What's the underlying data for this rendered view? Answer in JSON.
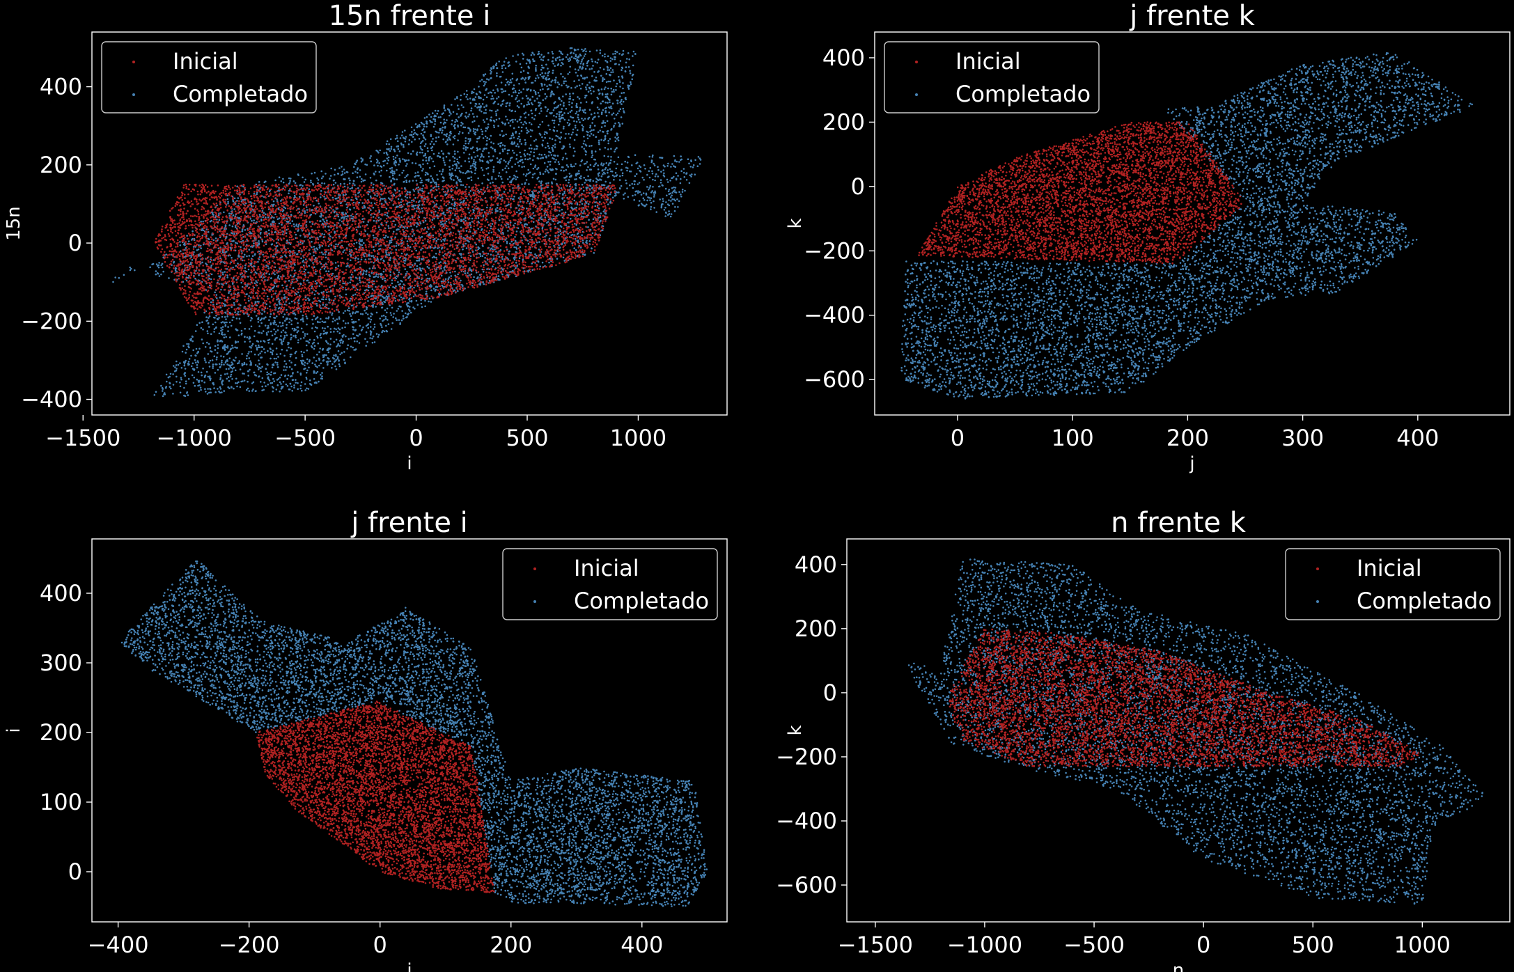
{
  "legend_labels": {
    "initial": "Inicial",
    "completed": "Completado"
  },
  "colors": {
    "initial": "#b22222",
    "completed": "#4682b4",
    "axes": "#ffffff",
    "background": "#000000"
  },
  "chart_data": [
    {
      "type": "scatter",
      "title": "15n frente i",
      "xlabel": "i",
      "ylabel": "15n",
      "xlim": [
        -1460,
        1400
      ],
      "ylim": [
        -440,
        540
      ],
      "xticks": [
        -1500,
        -1000,
        -500,
        0,
        500,
        1000
      ],
      "yticks": [
        -400,
        -200,
        0,
        200,
        400
      ],
      "legend_position": "upper-left",
      "series": [
        {
          "name": "Inicial",
          "key": "initial",
          "point_count": 6000,
          "region": [
            [
              -1180,
              0
            ],
            [
              -1050,
              150
            ],
            [
              900,
              150
            ],
            [
              900,
              120
            ],
            [
              800,
              -30
            ],
            [
              100,
              -140
            ],
            [
              -500,
              -185
            ],
            [
              -1000,
              -185
            ]
          ]
        },
        {
          "name": "Completado",
          "key": "completed",
          "point_count": 6500,
          "region": [
            [
              -1400,
              -110
            ],
            [
              -1150,
              -40
            ],
            [
              -800,
              150
            ],
            [
              -300,
              200
            ],
            [
              200,
              380
            ],
            [
              400,
              480
            ],
            [
              700,
              500
            ],
            [
              1000,
              490
            ],
            [
              900,
              230
            ],
            [
              1300,
              220
            ],
            [
              1150,
              60
            ],
            [
              900,
              120
            ],
            [
              800,
              -30
            ],
            [
              100,
              -140
            ],
            [
              -200,
              -260
            ],
            [
              -500,
              -380
            ],
            [
              -800,
              -380
            ],
            [
              -1200,
              -400
            ],
            [
              -900,
              -130
            ],
            [
              -1300,
              -60
            ]
          ]
        }
      ]
    },
    {
      "type": "scatter",
      "title": "j  frente k",
      "xlabel": "j",
      "ylabel": "k",
      "xlim": [
        -72,
        480
      ],
      "ylim": [
        -710,
        480
      ],
      "xticks": [
        0,
        100,
        200,
        300,
        400
      ],
      "yticks": [
        -600,
        -400,
        -200,
        0,
        200,
        400
      ],
      "legend_position": "upper-left",
      "series": [
        {
          "name": "Inicial",
          "key": "initial",
          "point_count": 5000,
          "region": [
            [
              -35,
              -215
            ],
            [
              0,
              0
            ],
            [
              50,
              90
            ],
            [
              150,
              200
            ],
            [
              200,
              200
            ],
            [
              250,
              -50
            ],
            [
              190,
              -240
            ],
            [
              -35,
              -215
            ]
          ]
        },
        {
          "name": "Completado",
          "key": "completed",
          "point_count": 6500,
          "region": [
            [
              -45,
              -230
            ],
            [
              -50,
              -600
            ],
            [
              0,
              -660
            ],
            [
              150,
              -640
            ],
            [
              200,
              -500
            ],
            [
              270,
              -350
            ],
            [
              330,
              -330
            ],
            [
              400,
              -170
            ],
            [
              380,
              -80
            ],
            [
              300,
              -50
            ],
            [
              330,
              80
            ],
            [
              450,
              250
            ],
            [
              380,
              420
            ],
            [
              300,
              380
            ],
            [
              220,
              250
            ],
            [
              180,
              240
            ],
            [
              250,
              -50
            ],
            [
              190,
              -240
            ],
            [
              -45,
              -230
            ]
          ]
        }
      ]
    },
    {
      "type": "scatter",
      "title": "j frente i",
      "xlabel": "j",
      "ylabel": "i",
      "xlim": [
        -440,
        530
      ],
      "ylim": [
        -72,
        478
      ],
      "xticks": [
        -400,
        -200,
        0,
        200,
        400
      ],
      "yticks": [
        0,
        100,
        200,
        300,
        400
      ],
      "legend_position": "upper-right",
      "series": [
        {
          "name": "Inicial",
          "key": "initial",
          "point_count": 5500,
          "region": [
            [
              -190,
              200
            ],
            [
              -5,
              245
            ],
            [
              140,
              180
            ],
            [
              175,
              -30
            ],
            [
              90,
              -25
            ],
            [
              0,
              0
            ],
            [
              -130,
              90
            ],
            [
              -175,
              140
            ]
          ]
        },
        {
          "name": "Completado",
          "key": "completed",
          "point_count": 6500,
          "region": [
            [
              -400,
              330
            ],
            [
              -280,
              450
            ],
            [
              -180,
              360
            ],
            [
              -50,
              330
            ],
            [
              40,
              380
            ],
            [
              140,
              320
            ],
            [
              200,
              130
            ],
            [
              300,
              150
            ],
            [
              480,
              130
            ],
            [
              500,
              0
            ],
            [
              470,
              -50
            ],
            [
              200,
              -45
            ],
            [
              175,
              -30
            ],
            [
              140,
              180
            ],
            [
              -5,
              245
            ],
            [
              -190,
              200
            ],
            [
              -350,
              290
            ]
          ]
        }
      ]
    },
    {
      "type": "scatter",
      "title": "n frente k",
      "xlabel": "n",
      "ylabel": "k",
      "xlim": [
        -1630,
        1400
      ],
      "ylim": [
        -715,
        480
      ],
      "xticks": [
        -1500,
        -1000,
        -500,
        0,
        500,
        1000
      ],
      "yticks": [
        -600,
        -400,
        -200,
        0,
        200,
        400
      ],
      "legend_position": "upper-right",
      "series": [
        {
          "name": "Inicial",
          "key": "initial",
          "point_count": 6000,
          "region": [
            [
              -1180,
              -20
            ],
            [
              -1000,
              200
            ],
            [
              -700,
              190
            ],
            [
              -200,
              130
            ],
            [
              300,
              0
            ],
            [
              700,
              -80
            ],
            [
              1000,
              -190
            ],
            [
              900,
              -230
            ],
            [
              -800,
              -230
            ],
            [
              -1100,
              -150
            ]
          ]
        },
        {
          "name": "Completado",
          "key": "completed",
          "point_count": 6500,
          "region": [
            [
              -1370,
              100
            ],
            [
              -1200,
              80
            ],
            [
              -1100,
              420
            ],
            [
              -600,
              400
            ],
            [
              -300,
              260
            ],
            [
              200,
              180
            ],
            [
              700,
              0
            ],
            [
              1100,
              -170
            ],
            [
              1300,
              -330
            ],
            [
              1050,
              -420
            ],
            [
              1000,
              -660
            ],
            [
              500,
              -640
            ],
            [
              0,
              -520
            ],
            [
              -400,
              -300
            ],
            [
              -800,
              -240
            ],
            [
              -1150,
              -160
            ]
          ]
        }
      ]
    }
  ]
}
